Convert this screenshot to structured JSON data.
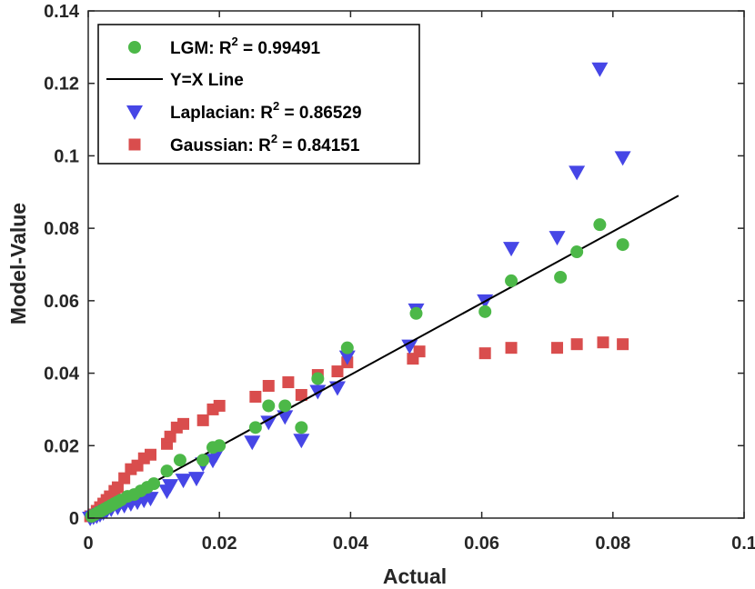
{
  "chart_data": {
    "type": "scatter",
    "title": "",
    "xlabel": "Actual",
    "ylabel": "Model-Value",
    "xlim": [
      0,
      0.1
    ],
    "ylim": [
      0,
      0.14
    ],
    "x_ticks": [
      0,
      0.02,
      0.04,
      0.06,
      0.08,
      0.1
    ],
    "x_tick_labels": [
      "0",
      "0.02",
      "0.04",
      "0.06",
      "0.08",
      "0.1"
    ],
    "y_ticks": [
      0,
      0.02,
      0.04,
      0.06,
      0.08,
      0.1,
      0.12,
      0.14
    ],
    "y_tick_labels": [
      "0",
      "0.02",
      "0.04",
      "0.06",
      "0.08",
      "0.1",
      "0.12",
      "0.14"
    ],
    "grid": false,
    "legend_position": "top-left",
    "legend": [
      {
        "key": "lgm",
        "prefix": "LGM: R",
        "sup": "2",
        "suffix": " = 0.99491"
      },
      {
        "key": "line",
        "prefix": "Y=X Line",
        "sup": "",
        "suffix": ""
      },
      {
        "key": "laplacian",
        "prefix": "Laplacian: R",
        "sup": "2",
        "suffix": " = 0.86529"
      },
      {
        "key": "gaussian",
        "prefix": "Gaussian: R",
        "sup": "2",
        "suffix": " = 0.84151"
      }
    ],
    "colors": {
      "lgm": "#4cb848",
      "line": "#000000",
      "laplacian": "#4646e6",
      "gaussian": "#d94d4d",
      "axis": "#262626"
    },
    "reference_line": {
      "name": "Y=X Line",
      "x": [
        0.0,
        0.09
      ],
      "y": [
        0.0,
        0.089
      ]
    },
    "series": [
      {
        "name": "LGM",
        "key": "lgm",
        "marker": "circle",
        "x": [
          0.0005,
          0.001,
          0.0015,
          0.002,
          0.0025,
          0.003,
          0.0035,
          0.004,
          0.0045,
          0.005,
          0.006,
          0.007,
          0.008,
          0.009,
          0.01,
          0.012,
          0.014,
          0.0175,
          0.019,
          0.02,
          0.0255,
          0.0275,
          0.03,
          0.0325,
          0.035,
          0.0395,
          0.05,
          0.0605,
          0.0645,
          0.072,
          0.0745,
          0.078,
          0.0815
        ],
        "y": [
          0.0005,
          0.001,
          0.0015,
          0.002,
          0.0025,
          0.003,
          0.0035,
          0.004,
          0.0045,
          0.005,
          0.006,
          0.0065,
          0.0075,
          0.0085,
          0.0095,
          0.013,
          0.016,
          0.016,
          0.0195,
          0.02,
          0.025,
          0.031,
          0.031,
          0.025,
          0.0385,
          0.047,
          0.0565,
          0.057,
          0.0655,
          0.0665,
          0.0735,
          0.081,
          0.0755
        ]
      },
      {
        "name": "Laplacian",
        "key": "laplacian",
        "marker": "triangle-down",
        "x": [
          0.0003,
          0.0008,
          0.0013,
          0.0018,
          0.0023,
          0.0028,
          0.0035,
          0.0045,
          0.0055,
          0.0065,
          0.0075,
          0.0085,
          0.0095,
          0.012,
          0.0125,
          0.0145,
          0.0165,
          0.0175,
          0.019,
          0.0195,
          0.025,
          0.0275,
          0.03,
          0.0325,
          0.035,
          0.038,
          0.0395,
          0.049,
          0.05,
          0.0605,
          0.0645,
          0.0715,
          0.0745,
          0.078,
          0.0815
        ],
        "y": [
          0.0,
          0.0003,
          0.0006,
          0.001,
          0.0015,
          0.002,
          0.0025,
          0.003,
          0.0035,
          0.004,
          0.0045,
          0.005,
          0.0055,
          0.0075,
          0.009,
          0.0105,
          0.011,
          0.015,
          0.016,
          0.0175,
          0.021,
          0.0265,
          0.028,
          0.0215,
          0.035,
          0.036,
          0.0445,
          0.0475,
          0.0575,
          0.06,
          0.0745,
          0.0775,
          0.0955,
          0.124,
          0.0995
        ]
      },
      {
        "name": "Gaussian",
        "key": "gaussian",
        "marker": "square",
        "x": [
          0.0003,
          0.0008,
          0.0013,
          0.0018,
          0.0023,
          0.0028,
          0.0033,
          0.004,
          0.0045,
          0.0055,
          0.0065,
          0.0075,
          0.0085,
          0.0095,
          0.012,
          0.0125,
          0.0135,
          0.0145,
          0.0175,
          0.019,
          0.02,
          0.0255,
          0.0275,
          0.0305,
          0.0325,
          0.035,
          0.038,
          0.0395,
          0.0495,
          0.0505,
          0.0605,
          0.0645,
          0.0715,
          0.0745,
          0.0785,
          0.0815
        ],
        "y": [
          0.0005,
          0.001,
          0.002,
          0.003,
          0.004,
          0.005,
          0.006,
          0.0075,
          0.0085,
          0.011,
          0.0135,
          0.0145,
          0.0165,
          0.0175,
          0.0205,
          0.0225,
          0.025,
          0.026,
          0.027,
          0.03,
          0.031,
          0.0335,
          0.0365,
          0.0375,
          0.034,
          0.0395,
          0.0405,
          0.043,
          0.044,
          0.046,
          0.0455,
          0.047,
          0.047,
          0.048,
          0.0485,
          0.048
        ]
      }
    ]
  }
}
